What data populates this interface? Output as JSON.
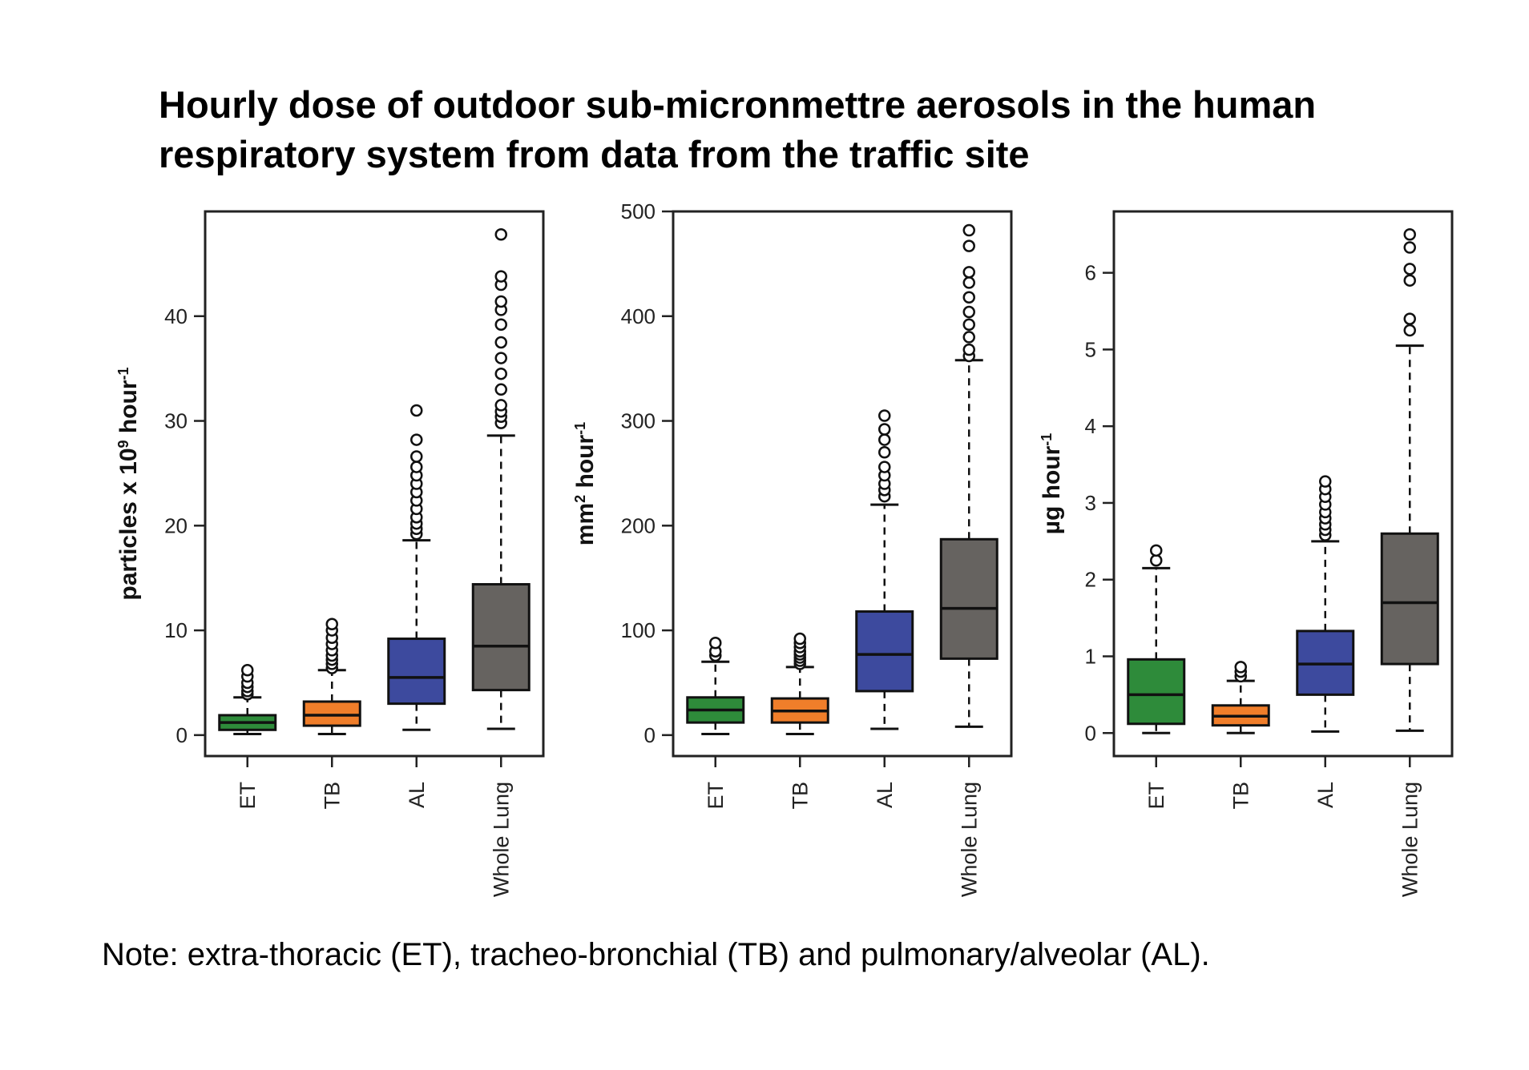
{
  "title_lines": [
    "Hourly dose of outdoor sub-micronmettre aerosols in the human",
    "respiratory system from data from the traffic site"
  ],
  "note": "Note: extra-thoracic (ET), tracheo-bronchial (TB) and pulmonary/alveolar (AL).",
  "colors": {
    "ET": "#2e8b3a",
    "TB": "#f07e2a",
    "AL": "#3d4a9e",
    "Whole Lung": "#666360"
  },
  "chart_data": [
    {
      "type": "box",
      "ylabel_main": "particles x 10",
      "ylabel_sup1": "9",
      "ylabel_mid": " hour",
      "ylabel_sup2": "-1",
      "ylim": [
        -2,
        50
      ],
      "yticks": [
        0,
        10,
        20,
        30,
        40
      ],
      "categories": [
        "ET",
        "TB",
        "AL",
        "Whole Lung"
      ],
      "boxes": [
        {
          "category": "ET",
          "whisker_low": 0.1,
          "q1": 0.5,
          "median": 1.2,
          "q3": 1.9,
          "whisker_high": 3.6,
          "outliers": [
            3.9,
            4.2,
            4.6,
            5.0,
            5.6,
            6.2
          ]
        },
        {
          "category": "TB",
          "whisker_low": 0.1,
          "q1": 0.9,
          "median": 1.9,
          "q3": 3.2,
          "whisker_high": 6.2,
          "outliers": [
            6.4,
            6.8,
            7.2,
            7.6,
            8.1,
            8.7,
            9.3,
            10.0,
            10.6
          ]
        },
        {
          "category": "AL",
          "whisker_low": 0.5,
          "q1": 3.0,
          "median": 5.5,
          "q3": 9.2,
          "whisker_high": 18.6,
          "outliers": [
            19.2,
            19.7,
            20.2,
            20.8,
            21.6,
            22.4,
            23.2,
            24.0,
            24.8,
            25.6,
            26.6,
            28.2,
            31.0
          ]
        },
        {
          "category": "Whole Lung",
          "whisker_low": 0.6,
          "q1": 4.3,
          "median": 8.5,
          "q3": 14.4,
          "whisker_high": 28.6,
          "outliers": [
            29.8,
            30.4,
            30.9,
            31.5,
            33.0,
            34.5,
            36.0,
            37.5,
            39.2,
            40.6,
            41.4,
            43.0,
            43.8,
            47.8
          ]
        }
      ]
    },
    {
      "type": "box",
      "ylabel_main": "mm",
      "ylabel_sup1": "2",
      "ylabel_mid": " hour",
      "ylabel_sup2": "-1",
      "ylim": [
        -20,
        500
      ],
      "yticks": [
        0,
        100,
        200,
        300,
        400,
        500
      ],
      "categories": [
        "ET",
        "TB",
        "AL",
        "Whole Lung"
      ],
      "boxes": [
        {
          "category": "ET",
          "whisker_low": 1,
          "q1": 12,
          "median": 24,
          "q3": 36,
          "whisker_high": 70,
          "outliers": [
            76,
            80,
            88
          ]
        },
        {
          "category": "TB",
          "whisker_low": 1,
          "q1": 12,
          "median": 23,
          "q3": 35,
          "whisker_high": 65,
          "outliers": [
            68,
            71,
            74,
            77,
            80,
            84,
            88,
            92
          ]
        },
        {
          "category": "AL",
          "whisker_low": 6,
          "q1": 42,
          "median": 77,
          "q3": 118,
          "whisker_high": 220,
          "outliers": [
            228,
            234,
            240,
            248,
            256,
            270,
            282,
            292,
            305
          ]
        },
        {
          "category": "Whole Lung",
          "whisker_low": 8,
          "q1": 73,
          "median": 121,
          "q3": 187,
          "whisker_high": 358,
          "outliers": [
            362,
            368,
            380,
            392,
            404,
            418,
            432,
            442,
            467,
            482
          ]
        }
      ]
    },
    {
      "type": "box",
      "ylabel_main": "µg hour",
      "ylabel_sup1": "",
      "ylabel_mid": "",
      "ylabel_sup2": "-1",
      "ylim": [
        -0.3,
        6.8
      ],
      "yticks": [
        0,
        1,
        2,
        3,
        4,
        5,
        6
      ],
      "categories": [
        "ET",
        "TB",
        "AL",
        "Whole Lung"
      ],
      "boxes": [
        {
          "category": "ET",
          "whisker_low": 0.0,
          "q1": 0.12,
          "median": 0.5,
          "q3": 0.96,
          "whisker_high": 2.15,
          "outliers": [
            2.25,
            2.38
          ]
        },
        {
          "category": "TB",
          "whisker_low": 0.0,
          "q1": 0.1,
          "median": 0.22,
          "q3": 0.36,
          "whisker_high": 0.68,
          "outliers": [
            0.74,
            0.8,
            0.86
          ]
        },
        {
          "category": "AL",
          "whisker_low": 0.02,
          "q1": 0.5,
          "median": 0.9,
          "q3": 1.33,
          "whisker_high": 2.5,
          "outliers": [
            2.58,
            2.65,
            2.72,
            2.8,
            2.88,
            2.98,
            3.08,
            3.18,
            3.28
          ]
        },
        {
          "category": "Whole Lung",
          "whisker_low": 0.03,
          "q1": 0.9,
          "median": 1.7,
          "q3": 2.6,
          "whisker_high": 5.05,
          "outliers": [
            5.25,
            5.4,
            5.9,
            6.05,
            6.33,
            6.5
          ]
        }
      ]
    }
  ]
}
